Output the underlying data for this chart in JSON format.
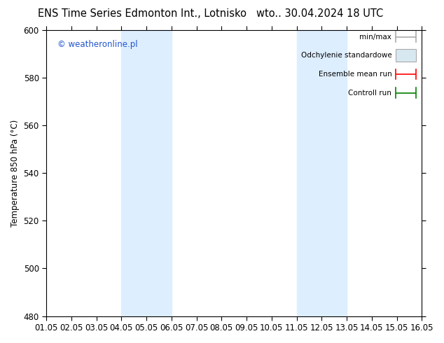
{
  "title_left": "ENS Time Series Edmonton Int., Lotnisko",
  "title_right": "wto.. 30.04.2024 18 UTC",
  "ylabel": "Temperature 850 hPa (°C)",
  "ylim": [
    480,
    600
  ],
  "yticks": [
    480,
    500,
    520,
    540,
    560,
    580,
    600
  ],
  "xlim": [
    0,
    15
  ],
  "xtick_labels": [
    "01.05",
    "02.05",
    "03.05",
    "04.05",
    "05.05",
    "06.05",
    "07.05",
    "08.05",
    "09.05",
    "10.05",
    "11.05",
    "12.05",
    "13.05",
    "14.05",
    "15.05",
    "16.05"
  ],
  "xtick_positions": [
    0,
    1,
    2,
    3,
    4,
    5,
    6,
    7,
    8,
    9,
    10,
    11,
    12,
    13,
    14,
    15
  ],
  "shaded_bands": [
    {
      "x_start": 3,
      "x_end": 5
    },
    {
      "x_start": 10,
      "x_end": 12
    }
  ],
  "shade_color": "#ddeeff",
  "watermark_text": "© weatheronline.pl",
  "watermark_color": "#2255cc",
  "legend_items": [
    {
      "label": "min/max",
      "type": "line",
      "color": "#aaaaaa"
    },
    {
      "label": "Odchylenie standardowe",
      "type": "patch",
      "facecolor": "#d8e8f0",
      "edgecolor": "#aaaaaa"
    },
    {
      "label": "Ensemble mean run",
      "type": "line",
      "color": "#ff0000"
    },
    {
      "label": "Controll run",
      "type": "line",
      "color": "#008000"
    }
  ],
  "bg_color": "#ffffff",
  "axes_bg_color": "#ffffff",
  "title_fontsize": 10.5,
  "tick_fontsize": 8.5,
  "ylabel_fontsize": 8.5,
  "legend_fontsize": 7.5,
  "watermark_fontsize": 8.5
}
